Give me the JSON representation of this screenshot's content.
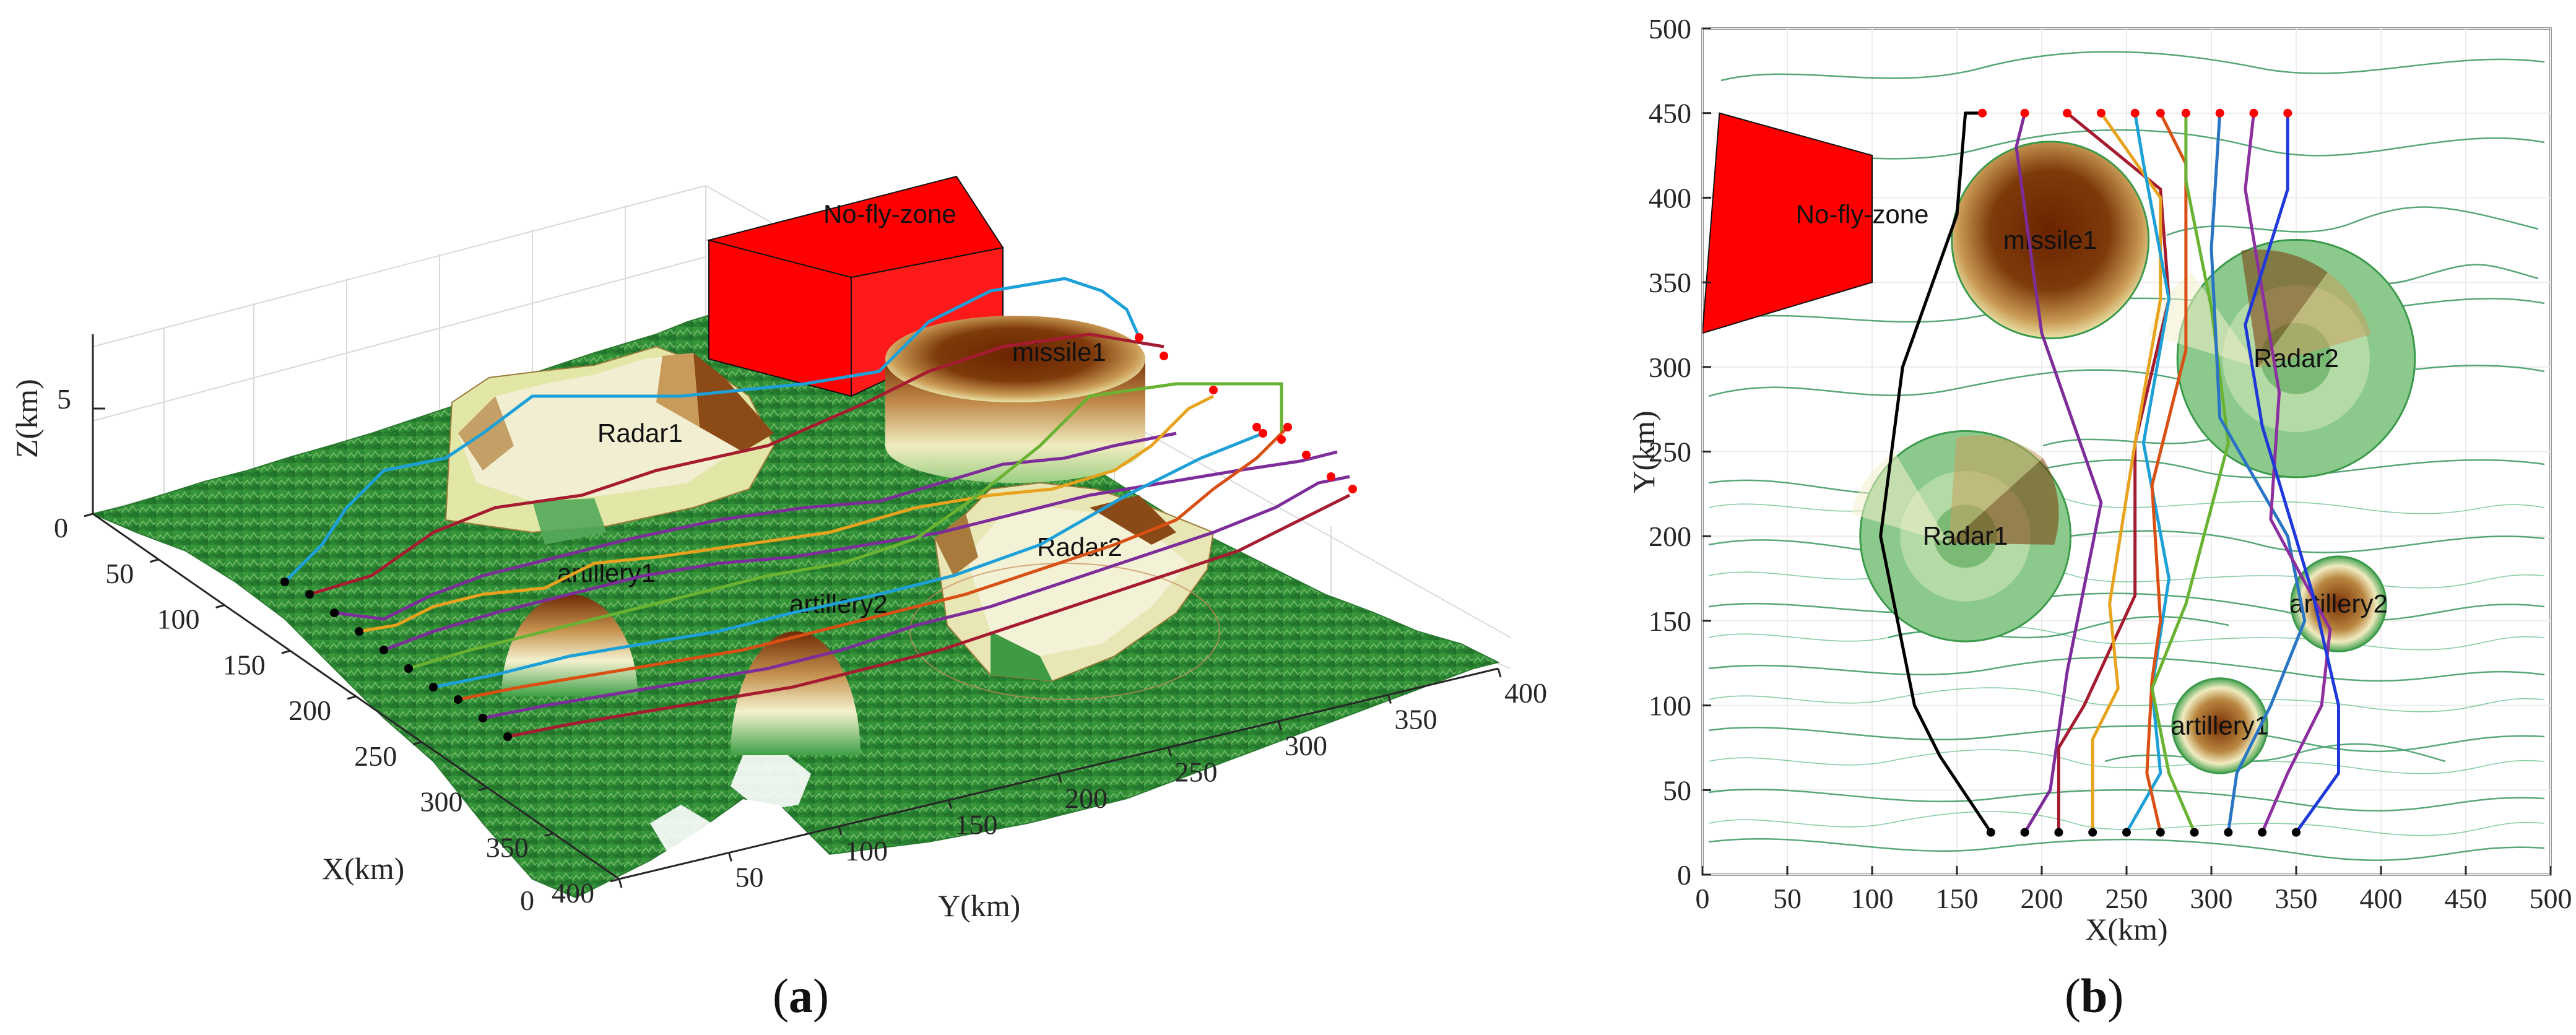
{
  "chart_data": [
    {
      "type": "scatter",
      "panel_label_prefix": "(",
      "panel_letter": "a",
      "panel_label_suffix": ")",
      "xlabel": "X(km)",
      "ylabel": "Y(km)",
      "zlabel": "Z(km)",
      "xticks": [
        "0",
        "50",
        "100",
        "150",
        "200",
        "250",
        "300",
        "350",
        "400"
      ],
      "yticks": [
        "0",
        "50",
        "100",
        "150",
        "200",
        "250",
        "300",
        "350",
        "400"
      ],
      "zticks": [
        "5"
      ],
      "xlim": [
        0,
        400
      ],
      "ylim": [
        0,
        400
      ],
      "zlim": [
        0,
        8
      ],
      "objects": [
        {
          "label": "No-fly-zone",
          "kind": "box",
          "color": "#ff0000"
        },
        {
          "label": "missile1",
          "kind": "cylinder"
        },
        {
          "label": "Radar1",
          "kind": "radar"
        },
        {
          "label": "Radar2",
          "kind": "radar"
        },
        {
          "label": "artillery1",
          "kind": "dome"
        },
        {
          "label": "artillery2",
          "kind": "dome"
        }
      ],
      "start_marker_color": "#000000",
      "end_marker_color": "#ff0000",
      "view": "3-D terrain, oblique view"
    },
    {
      "type": "scatter",
      "panel_label_prefix": "(",
      "panel_letter": "b",
      "panel_label_suffix": ")",
      "xlabel": "X(km)",
      "ylabel": "Y(km)",
      "xticks": [
        "0",
        "50",
        "100",
        "150",
        "200",
        "250",
        "300",
        "350",
        "400",
        "450",
        "500"
      ],
      "yticks": [
        "0",
        "50",
        "100",
        "150",
        "200",
        "250",
        "300",
        "350",
        "400",
        "450",
        "500"
      ],
      "xlim": [
        0,
        500
      ],
      "ylim": [
        0,
        500
      ],
      "grid": true,
      "objects": [
        {
          "label": "No-fly-zone",
          "kind": "polygon",
          "color": "#ff0000",
          "vertices": [
            [
              0,
              320
            ],
            [
              100,
              350
            ],
            [
              100,
              425
            ],
            [
              10,
              450
            ]
          ]
        },
        {
          "label": "missile1",
          "kind": "circle",
          "center": [
            205,
            375
          ],
          "radius": 58
        },
        {
          "label": "Radar1",
          "kind": "circle",
          "center": [
            155,
            200
          ],
          "radius": 62
        },
        {
          "label": "Radar2",
          "kind": "circle",
          "center": [
            350,
            305
          ],
          "radius": 70
        },
        {
          "label": "artillery1",
          "kind": "circle",
          "center": [
            305,
            88
          ],
          "radius": 28
        },
        {
          "label": "artillery2",
          "kind": "circle",
          "center": [
            375,
            160
          ],
          "radius": 28
        }
      ],
      "series": [
        {
          "color": "#000000",
          "points": [
            [
              170,
              25
            ],
            [
              140,
              70
            ],
            [
              125,
              100
            ],
            [
              105,
              200
            ],
            [
              118,
              300
            ],
            [
              150,
              390
            ],
            [
              155,
              450
            ],
            [
              165,
              450
            ]
          ]
        },
        {
          "color": "#7d2d9a",
          "points": [
            [
              190,
              25
            ],
            [
              205,
              50
            ],
            [
              215,
              120
            ],
            [
              235,
              220
            ],
            [
              200,
              320
            ],
            [
              185,
              430
            ],
            [
              190,
              450
            ]
          ]
        },
        {
          "color": "#a51c30",
          "points": [
            [
              210,
              25
            ],
            [
              210,
              75
            ],
            [
              225,
              100
            ],
            [
              255,
              165
            ],
            [
              255,
              255
            ],
            [
              275,
              340
            ],
            [
              270,
              405
            ],
            [
              215,
              450
            ]
          ]
        },
        {
          "color": "#e8a31e",
          "points": [
            [
              230,
              25
            ],
            [
              230,
              80
            ],
            [
              245,
              110
            ],
            [
              240,
              160
            ],
            [
              255,
              255
            ],
            [
              270,
              340
            ],
            [
              270,
              400
            ],
            [
              235,
              450
            ]
          ]
        },
        {
          "color": "#1da0d8",
          "points": [
            [
              250,
              25
            ],
            [
              270,
              60
            ],
            [
              265,
              110
            ],
            [
              275,
              175
            ],
            [
              260,
              255
            ],
            [
              275,
              340
            ],
            [
              260,
              420
            ],
            [
              255,
              450
            ]
          ]
        },
        {
          "color": "#d94f14",
          "points": [
            [
              270,
              25
            ],
            [
              262,
              60
            ],
            [
              265,
              115
            ],
            [
              270,
              150
            ],
            [
              265,
              230
            ],
            [
              285,
              310
            ],
            [
              285,
              420
            ],
            [
              270,
              450
            ]
          ]
        },
        {
          "color": "#6ab232",
          "points": [
            [
              290,
              25
            ],
            [
              275,
              60
            ],
            [
              265,
              110
            ],
            [
              285,
              160
            ],
            [
              310,
              255
            ],
            [
              300,
              335
            ],
            [
              285,
              410
            ],
            [
              285,
              450
            ]
          ]
        },
        {
          "color": "#2a74c4",
          "points": [
            [
              310,
              25
            ],
            [
              315,
              60
            ],
            [
              335,
              100
            ],
            [
              355,
              150
            ],
            [
              345,
              200
            ],
            [
              305,
              270
            ],
            [
              300,
              370
            ],
            [
              305,
              450
            ]
          ]
        },
        {
          "color": "#8c2f9f",
          "points": [
            [
              330,
              25
            ],
            [
              345,
              60
            ],
            [
              365,
              100
            ],
            [
              370,
              145
            ],
            [
              335,
              210
            ],
            [
              340,
              285
            ],
            [
              320,
              405
            ],
            [
              325,
              450
            ]
          ]
        },
        {
          "color": "#1f38d9",
          "points": [
            [
              350,
              25
            ],
            [
              375,
              60
            ],
            [
              375,
              100
            ],
            [
              360,
              165
            ],
            [
              330,
              265
            ],
            [
              320,
              325
            ],
            [
              345,
              405
            ],
            [
              345,
              450
            ]
          ]
        }
      ],
      "start_marker_color": "#000000",
      "end_marker_color": "#ff0000"
    }
  ]
}
